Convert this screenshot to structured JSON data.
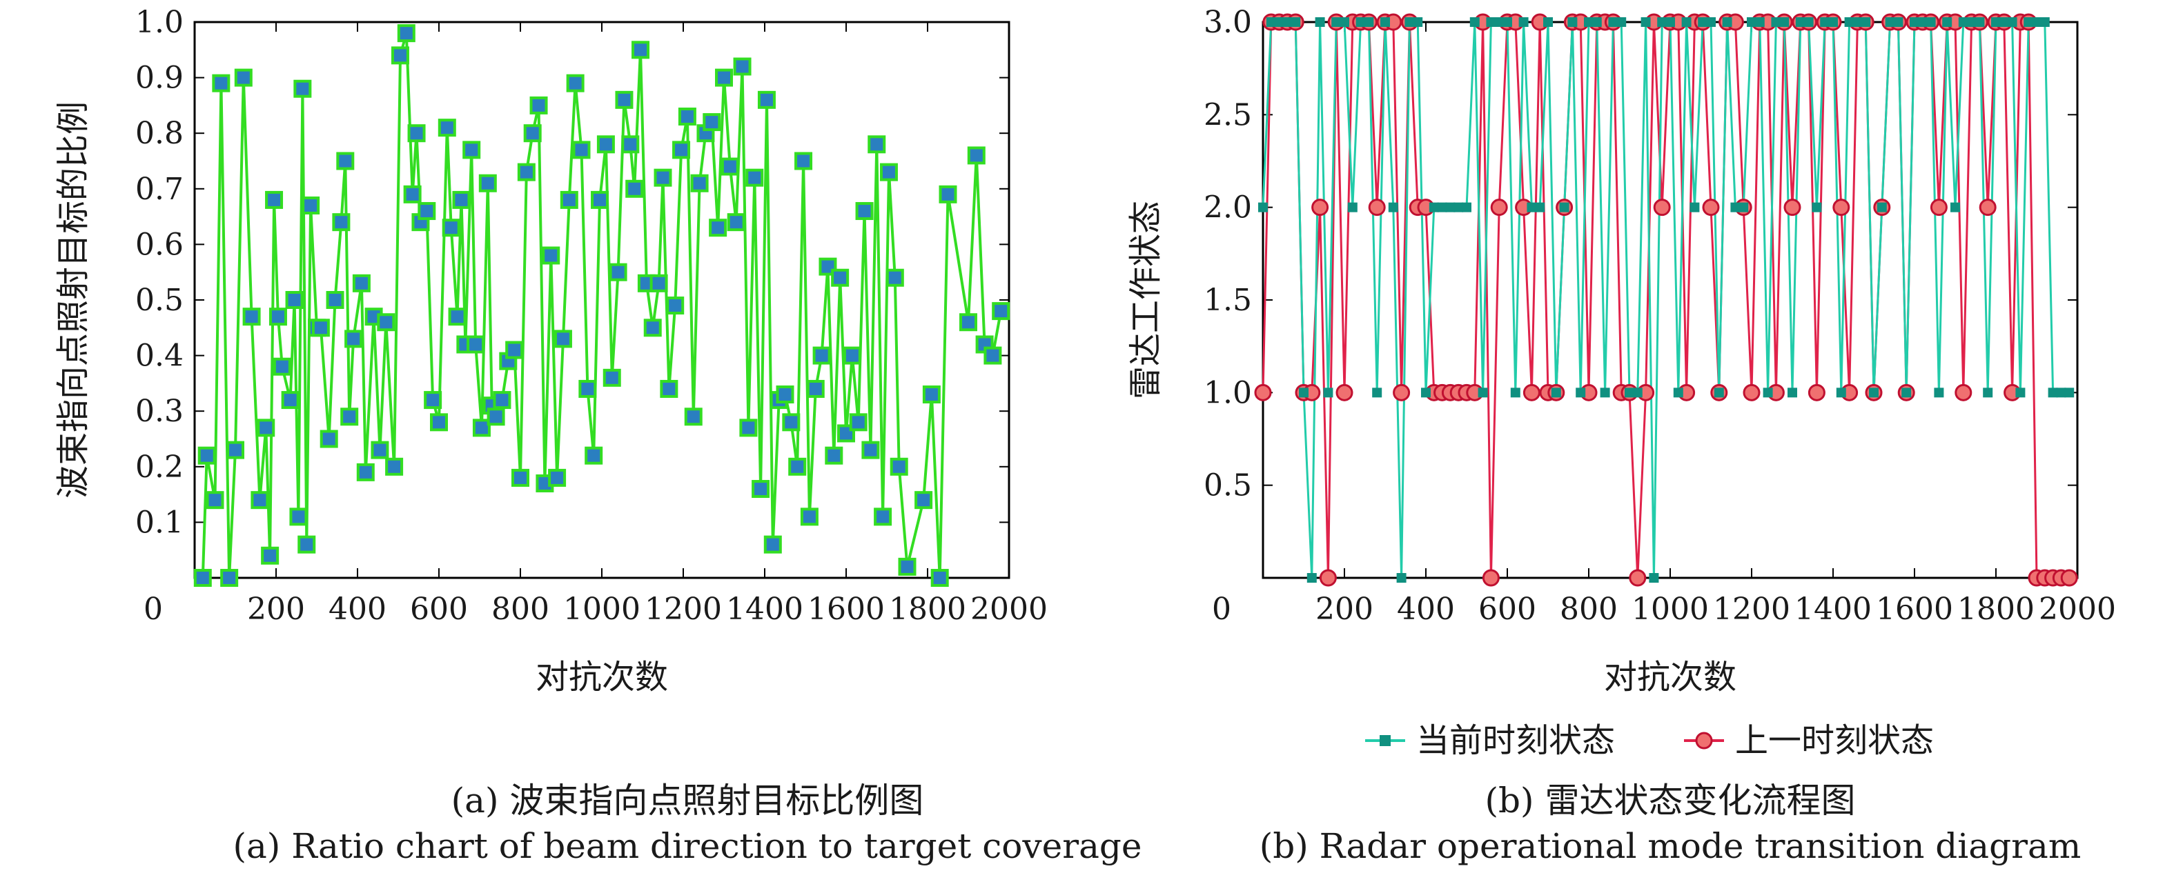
{
  "colors": {
    "green_line": "#33dd22",
    "blue_marker": "#2a7fc0",
    "teal_line": "#22ccaa",
    "teal_marker": "#109080",
    "red_line": "#e0224a",
    "red_marker_fill": "#f07070",
    "red_marker_edge": "#c01030"
  },
  "chart_data": [
    {
      "type": "line",
      "xlabel": "对抗次数",
      "ylabel": "波束指向点照射目标的比例",
      "xlim": [
        0,
        2000
      ],
      "ylim": [
        0,
        1.0
      ],
      "x_ticks": [
        "0",
        "200",
        "400",
        "600",
        "800",
        "1000",
        "1200",
        "1400",
        "1600",
        "1800",
        "2000"
      ],
      "y_ticks": [
        "0.1",
        "0.2",
        "0.3",
        "0.4",
        "0.5",
        "0.6",
        "0.7",
        "0.8",
        "0.9",
        "1.0"
      ],
      "caption_cn": "(a) 波束指向点照射目标比例图",
      "caption_en": "(a) Ratio chart of beam direction to target coverage",
      "series": [
        {
          "x": [
            20,
            30,
            50,
            65,
            85,
            100,
            120,
            140,
            160,
            175,
            185,
            195,
            205,
            215,
            235,
            245,
            255,
            265,
            275,
            285,
            300,
            310,
            330,
            345,
            360,
            370,
            380,
            390,
            410,
            420,
            440,
            455,
            470,
            490,
            505,
            520,
            535,
            545,
            555,
            570,
            585,
            600,
            620,
            630,
            645,
            655,
            665,
            680,
            690,
            705,
            720,
            730,
            740,
            755,
            770,
            785,
            800,
            815,
            830,
            845,
            860,
            875,
            890,
            905,
            920,
            935,
            950,
            965,
            980,
            995,
            1010,
            1025,
            1040,
            1055,
            1070,
            1080,
            1095,
            1110,
            1125,
            1140,
            1150,
            1165,
            1180,
            1195,
            1210,
            1225,
            1240,
            1255,
            1270,
            1285,
            1300,
            1315,
            1330,
            1345,
            1360,
            1375,
            1390,
            1405,
            1420,
            1435,
            1450,
            1465,
            1480,
            1495,
            1510,
            1525,
            1540,
            1555,
            1570,
            1585,
            1600,
            1615,
            1630,
            1645,
            1660,
            1675,
            1690,
            1705,
            1720,
            1730,
            1750,
            1790,
            1810,
            1830,
            1850,
            1900,
            1920,
            1940,
            1960,
            1980
          ],
          "y": [
            0,
            0.22,
            0.14,
            0.89,
            0,
            0.23,
            0.9,
            0.47,
            0.14,
            0.27,
            0.04,
            0.68,
            0.47,
            0.38,
            0.32,
            0.5,
            0.11,
            0.88,
            0.06,
            0.67,
            0.45,
            0.45,
            0.25,
            0.5,
            0.64,
            0.75,
            0.29,
            0.43,
            0.53,
            0.19,
            0.47,
            0.23,
            0.46,
            0.2,
            0.94,
            0.98,
            0.69,
            0.8,
            0.64,
            0.66,
            0.32,
            0.28,
            0.81,
            0.63,
            0.47,
            0.68,
            0.42,
            0.77,
            0.42,
            0.27,
            0.71,
            0.31,
            0.29,
            0.32,
            0.39,
            0.41,
            0.18,
            0.73,
            0.8,
            0.85,
            0.17,
            0.58,
            0.18,
            0.43,
            0.68,
            0.89,
            0.77,
            0.34,
            0.22,
            0.68,
            0.78,
            0.36,
            0.55,
            0.86,
            0.78,
            0.7,
            0.95,
            0.53,
            0.45,
            0.53,
            0.72,
            0.34,
            0.49,
            0.77,
            0.83,
            0.29,
            0.71,
            0.8,
            0.82,
            0.63,
            0.9,
            0.74,
            0.64,
            0.92,
            0.27,
            0.72,
            0.16,
            0.86,
            0.06,
            0.32,
            0.33,
            0.28,
            0.2,
            0.75,
            0.11,
            0.34,
            0.4,
            0.56,
            0.22,
            0.54,
            0.26,
            0.4,
            0.28,
            0.66,
            0.23,
            0.78,
            0.11,
            0.73,
            0.54,
            0.2,
            0.02,
            0.14,
            0.33,
            0,
            0.69,
            0.46,
            0.76,
            0.42,
            0.4,
            0.48
          ]
        }
      ]
    },
    {
      "type": "line",
      "xlabel": "对抗次数",
      "ylabel": "雷达工作状态",
      "xlim": [
        0,
        2000
      ],
      "ylim": [
        0,
        3.0
      ],
      "x_ticks": [
        "0",
        "200",
        "400",
        "600",
        "800",
        "1000",
        "1200",
        "1400",
        "1600",
        "1800",
        "2000"
      ],
      "y_ticks": [
        "0.5",
        "1.0",
        "1.5",
        "2.0",
        "2.5",
        "3.0"
      ],
      "caption_cn": "(b) 雷达状态变化流程图",
      "caption_en": "(b) Radar operational mode transition diagram",
      "x": [
        0,
        20,
        40,
        60,
        80,
        100,
        120,
        140,
        160,
        180,
        200,
        220,
        240,
        260,
        280,
        300,
        320,
        340,
        360,
        380,
        400,
        420,
        440,
        460,
        480,
        500,
        520,
        540,
        560,
        580,
        600,
        620,
        640,
        660,
        680,
        700,
        720,
        740,
        760,
        780,
        800,
        820,
        840,
        860,
        880,
        900,
        920,
        940,
        960,
        980,
        1000,
        1020,
        1040,
        1060,
        1080,
        1100,
        1120,
        1140,
        1160,
        1180,
        1200,
        1220,
        1240,
        1260,
        1280,
        1300,
        1320,
        1340,
        1360,
        1380,
        1400,
        1420,
        1440,
        1460,
        1480,
        1500,
        1520,
        1540,
        1560,
        1580,
        1600,
        1620,
        1640,
        1660,
        1680,
        1700,
        1720,
        1740,
        1760,
        1780,
        1800,
        1820,
        1840,
        1860,
        1880,
        1900,
        1920,
        1940,
        1960,
        1980
      ],
      "series": [
        {
          "name": "当前时刻状态",
          "values": [
            2,
            3,
            3,
            3,
            3,
            1,
            0,
            3,
            1,
            3,
            3,
            2,
            3,
            3,
            1,
            3,
            2,
            0,
            3,
            3,
            1,
            2,
            2,
            2,
            2,
            2,
            3,
            1,
            3,
            3,
            3,
            1,
            3,
            2,
            2,
            3,
            1,
            2,
            3,
            1,
            3,
            3,
            1,
            3,
            3,
            1,
            1,
            3,
            0,
            3,
            3,
            1,
            3,
            2,
            3,
            3,
            1,
            3,
            2,
            2,
            3,
            3,
            1,
            3,
            3,
            1,
            3,
            3,
            2,
            3,
            3,
            1,
            3,
            3,
            3,
            1,
            2,
            3,
            3,
            1,
            3,
            3,
            3,
            1,
            3,
            2,
            3,
            3,
            3,
            1,
            3,
            3,
            3,
            1,
            3,
            3,
            3,
            1,
            1,
            1
          ]
        },
        {
          "name": "上一时刻状态",
          "values": [
            1,
            3,
            3,
            3,
            3,
            1,
            1,
            2,
            0,
            3,
            1,
            3,
            3,
            3,
            2,
            3,
            3,
            1,
            3,
            2,
            2,
            1,
            1,
            1,
            1,
            1,
            1,
            3,
            0,
            2,
            3,
            3,
            2,
            1,
            3,
            1,
            1,
            2,
            3,
            3,
            1,
            3,
            3,
            3,
            1,
            1,
            0,
            1,
            3,
            2,
            3,
            3,
            1,
            3,
            3,
            2,
            1,
            3,
            3,
            2,
            1,
            3,
            3,
            1,
            3,
            2,
            3,
            3,
            1,
            3,
            3,
            2,
            1,
            3,
            3,
            1,
            2,
            3,
            3,
            1,
            3,
            3,
            3,
            2,
            3,
            3,
            1,
            3,
            3,
            2,
            3,
            3,
            1,
            3,
            3,
            0,
            0,
            0,
            0,
            0
          ]
        }
      ]
    }
  ]
}
